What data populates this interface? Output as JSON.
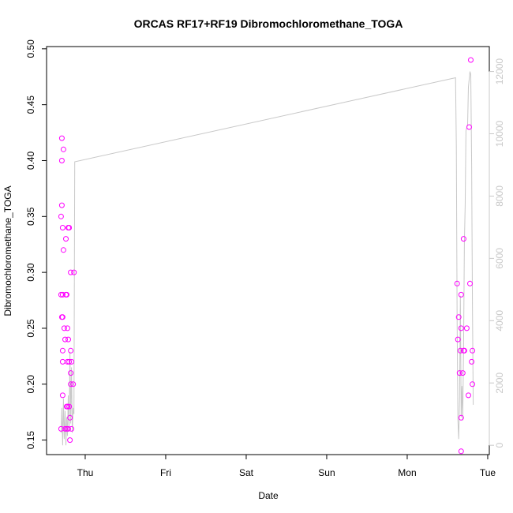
{
  "chart_data": {
    "type": "scatter",
    "title": "ORCAS RF17+RF19 Dibromochloromethane_TOGA",
    "xlabel": "Date",
    "ylabel": "Dibromochloromethane_TOGA",
    "x_ticks": [
      {
        "label": "Thu",
        "day": 1.0
      },
      {
        "label": "Fri",
        "day": 2.0
      },
      {
        "label": "Sat",
        "day": 3.0
      },
      {
        "label": "Sun",
        "day": 4.0
      },
      {
        "label": "Mon",
        "day": 5.0
      },
      {
        "label": "Tue",
        "day": 6.0
      }
    ],
    "xlim": [
      0.52,
      6.02
    ],
    "ylim": [
      0.137,
      0.502
    ],
    "y_ticks": [
      "0.15",
      "0.20",
      "0.25",
      "0.30",
      "0.35",
      "0.40",
      "0.45",
      "0.50"
    ],
    "y2lim": [
      -300,
      12800
    ],
    "y2_ticks": [
      "0",
      "2000",
      "4000",
      "6000",
      "8000",
      "10000",
      "12000"
    ],
    "colors": {
      "points": "#ff00ff",
      "line": "#c8c8c8",
      "axis": "#000000",
      "axis2": "#c8c8c8"
    },
    "grid": false,
    "series": [
      {
        "marker": "circle-open",
        "points": [
          [
            0.7,
            0.16
          ],
          [
            0.71,
            0.42
          ],
          [
            0.71,
            0.4
          ],
          [
            0.72,
            0.19
          ],
          [
            0.72,
            0.23
          ],
          [
            0.72,
            0.22
          ],
          [
            0.71,
            0.36
          ],
          [
            0.7,
            0.35
          ],
          [
            0.72,
            0.34
          ],
          [
            0.72,
            0.28
          ],
          [
            0.7,
            0.28
          ],
          [
            0.72,
            0.26
          ],
          [
            0.71,
            0.26
          ],
          [
            0.73,
            0.41
          ],
          [
            0.73,
            0.32
          ],
          [
            0.74,
            0.25
          ],
          [
            0.75,
            0.24
          ],
          [
            0.75,
            0.16
          ],
          [
            0.76,
            0.33
          ],
          [
            0.76,
            0.28
          ],
          [
            0.77,
            0.28
          ],
          [
            0.77,
            0.18
          ],
          [
            0.78,
            0.25
          ],
          [
            0.77,
            0.16
          ],
          [
            0.78,
            0.22
          ],
          [
            0.79,
            0.34
          ],
          [
            0.79,
            0.24
          ],
          [
            0.78,
            0.18
          ],
          [
            0.79,
            0.16
          ],
          [
            0.8,
            0.34
          ],
          [
            0.8,
            0.22
          ],
          [
            0.8,
            0.18
          ],
          [
            0.81,
            0.17
          ],
          [
            0.81,
            0.15
          ],
          [
            0.82,
            0.3
          ],
          [
            0.82,
            0.23
          ],
          [
            0.82,
            0.21
          ],
          [
            0.82,
            0.2
          ],
          [
            0.83,
            0.22
          ],
          [
            0.83,
            0.16
          ],
          [
            0.85,
            0.2
          ],
          [
            0.86,
            0.3
          ],
          [
            5.62,
            0.29
          ],
          [
            5.63,
            0.24
          ],
          [
            5.64,
            0.26
          ],
          [
            5.65,
            0.21
          ],
          [
            5.66,
            0.23
          ],
          [
            5.67,
            0.25
          ],
          [
            5.67,
            0.28
          ],
          [
            5.67,
            0.17
          ],
          [
            5.67,
            0.14
          ],
          [
            5.69,
            0.21
          ],
          [
            5.7,
            0.33
          ],
          [
            5.7,
            0.23
          ],
          [
            5.71,
            0.23
          ],
          [
            5.74,
            0.25
          ],
          [
            5.76,
            0.19
          ],
          [
            5.77,
            0.43
          ],
          [
            5.78,
            0.29
          ],
          [
            5.79,
            0.49
          ],
          [
            5.8,
            0.22
          ],
          [
            5.81,
            0.23
          ],
          [
            5.81,
            0.2
          ]
        ]
      },
      {
        "axis": "right",
        "line": [
          [
            0.7,
            400
          ],
          [
            0.71,
            1200
          ],
          [
            0.72,
            0
          ],
          [
            0.73,
            1500
          ],
          [
            0.74,
            200
          ],
          [
            0.75,
            1100
          ],
          [
            0.76,
            0
          ],
          [
            0.77,
            900
          ],
          [
            0.78,
            300
          ],
          [
            0.79,
            1600
          ],
          [
            0.8,
            500
          ],
          [
            0.81,
            3000
          ],
          [
            0.82,
            700
          ],
          [
            0.83,
            2500
          ],
          [
            0.84,
            400
          ],
          [
            0.85,
            1200
          ],
          [
            0.86,
            1000
          ],
          [
            0.87,
            9100
          ],
          [
            5.6,
            11800
          ],
          [
            5.61,
            9600
          ],
          [
            5.62,
            4000
          ],
          [
            5.63,
            800
          ],
          [
            5.64,
            200
          ],
          [
            5.65,
            1500
          ],
          [
            5.66,
            4800
          ],
          [
            5.67,
            900
          ],
          [
            5.68,
            1900
          ],
          [
            5.69,
            800
          ],
          [
            5.7,
            3200
          ],
          [
            5.71,
            6500
          ],
          [
            5.72,
            7700
          ],
          [
            5.73,
            10100
          ],
          [
            5.75,
            10300
          ],
          [
            5.76,
            11500
          ],
          [
            5.78,
            12000
          ],
          [
            5.79,
            11900
          ],
          [
            5.8,
            9000
          ],
          [
            5.81,
            4500
          ],
          [
            5.82,
            1300
          ]
        ]
      }
    ]
  }
}
